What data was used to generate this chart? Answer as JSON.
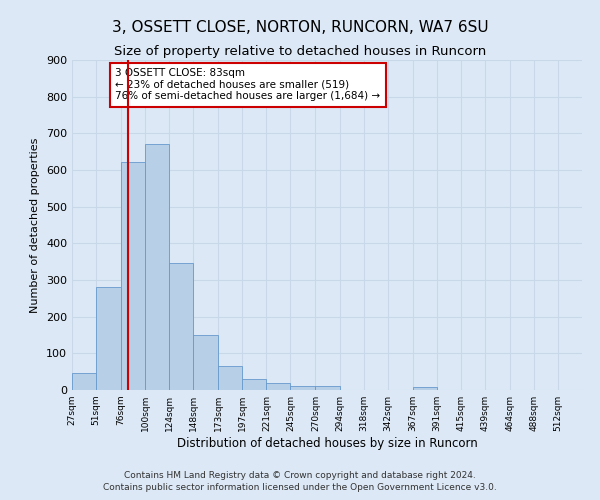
{
  "title": "3, OSSETT CLOSE, NORTON, RUNCORN, WA7 6SU",
  "subtitle": "Size of property relative to detached houses in Runcorn",
  "xlabel": "Distribution of detached houses by size in Runcorn",
  "ylabel": "Number of detached properties",
  "bin_labels": [
    "27sqm",
    "51sqm",
    "76sqm",
    "100sqm",
    "124sqm",
    "148sqm",
    "173sqm",
    "197sqm",
    "221sqm",
    "245sqm",
    "270sqm",
    "294sqm",
    "318sqm",
    "342sqm",
    "367sqm",
    "391sqm",
    "415sqm",
    "439sqm",
    "464sqm",
    "488sqm",
    "512sqm"
  ],
  "bar_heights": [
    46,
    281,
    623,
    670,
    347,
    149,
    65,
    31,
    18,
    12,
    10,
    0,
    0,
    0,
    8,
    0,
    0,
    0,
    0,
    0,
    0
  ],
  "bar_color": "#b8cfe8",
  "bar_edge_color": "#6699cc",
  "vline_x": 83,
  "vline_color": "#cc0000",
  "annotation_text": "3 OSSETT CLOSE: 83sqm\n← 23% of detached houses are smaller (519)\n76% of semi-detached houses are larger (1,684) →",
  "annotation_box_color": "#ffffff",
  "annotation_box_edge": "#cc0000",
  "ylim": [
    0,
    900
  ],
  "yticks": [
    0,
    100,
    200,
    300,
    400,
    500,
    600,
    700,
    800,
    900
  ],
  "grid_color": "#c8d8e8",
  "background_color": "#dce8f5",
  "footer_line1": "Contains HM Land Registry data © Crown copyright and database right 2024.",
  "footer_line2": "Contains public sector information licensed under the Open Government Licence v3.0.",
  "title_fontsize": 11,
  "subtitle_fontsize": 9.5,
  "bin_edges": [
    27,
    51,
    76,
    100,
    124,
    148,
    173,
    197,
    221,
    245,
    270,
    294,
    318,
    342,
    367,
    391,
    415,
    439,
    464,
    488,
    512,
    536
  ]
}
